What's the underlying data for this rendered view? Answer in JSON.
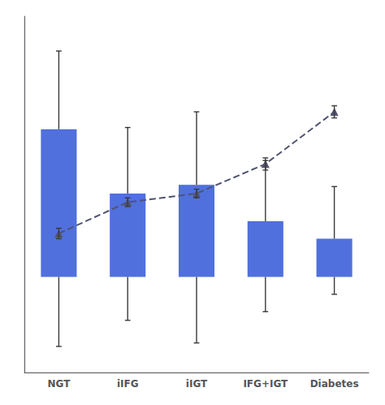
{
  "chart_data": {
    "type": "bar",
    "categories": [
      "NGT",
      "iIFG",
      "iIGT",
      "IFG+IGT",
      "Diabetes"
    ],
    "series": [
      {
        "type": "bar",
        "values": [
          8.5,
          4.8,
          5.3,
          3.2,
          2.2
        ],
        "err_top": [
          4.5,
          3.8,
          4.2,
          3.5,
          3.0
        ],
        "err_bottom": [
          4.0,
          2.5,
          3.8,
          2.0,
          1.0
        ]
      },
      {
        "type": "line",
        "line_style": "dashed",
        "marker": "triangle",
        "values": [
          2.5,
          4.3,
          4.8,
          6.5,
          9.5
        ],
        "err_top": [
          0.3,
          0.25,
          0.25,
          0.35,
          0.35
        ],
        "err_bottom": [
          0.3,
          0.25,
          0.25,
          0.35,
          0.35
        ]
      }
    ],
    "ylim": [
      -5.5,
      15.0
    ],
    "grid": false,
    "tick_labels": "x"
  }
}
